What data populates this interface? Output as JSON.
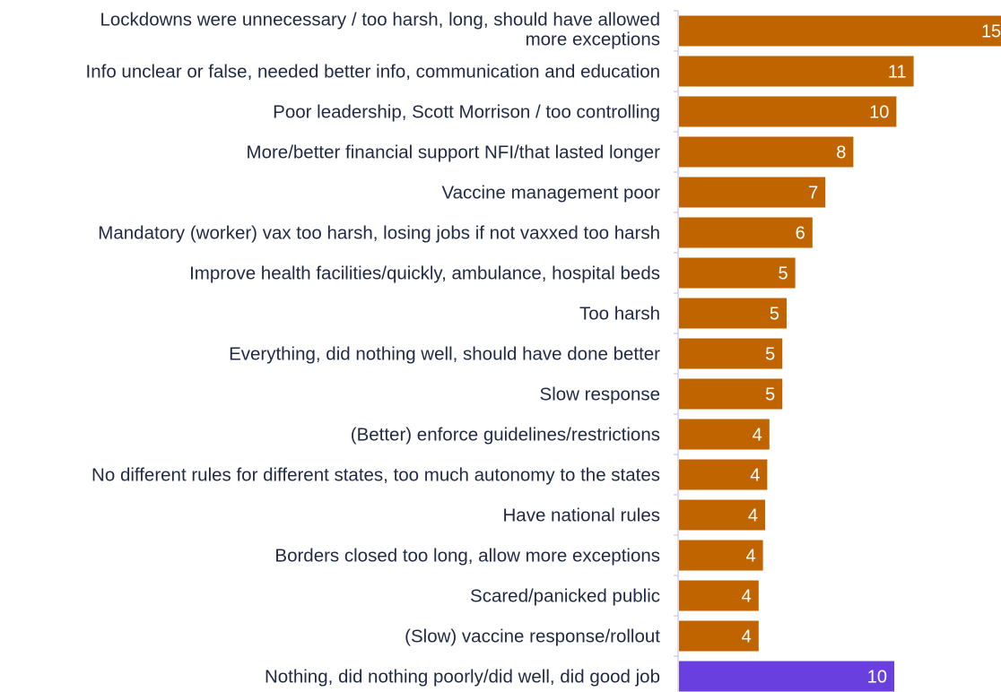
{
  "chart_data": {
    "type": "bar",
    "orientation": "horizontal",
    "categories": [
      [
        "Lockdowns were unnecessary / too harsh, long, should have allowed",
        "more exceptions"
      ],
      [
        "Info unclear or false, needed better info, communication and education"
      ],
      [
        "Poor leadership, Scott Morrison / too controlling"
      ],
      [
        "More/better financial support NFI/that lasted longer"
      ],
      [
        "Vaccine management poor"
      ],
      [
        "Mandatory (worker) vax too harsh, losing jobs if not vaxxed too harsh"
      ],
      [
        "Improve health facilities/quickly, ambulance, hospital beds"
      ],
      [
        "Too harsh"
      ],
      [
        "Everything, did nothing well, should have done better"
      ],
      [
        "Slow response"
      ],
      [
        "(Better) enforce guidelines/restrictions"
      ],
      [
        "No different rules for different states, too much autonomy to the states"
      ],
      [
        "Have national rules"
      ],
      [
        "Borders closed too long, allow more exceptions"
      ],
      [
        "Scared/panicked  public"
      ],
      [
        "(Slow) vaccine response/rollout"
      ],
      [
        "Nothing, did nothing poorly/did well, did good job"
      ]
    ],
    "values": [
      15.3,
      10.9,
      10.1,
      8.1,
      6.8,
      6.2,
      5.4,
      5.0,
      4.8,
      4.8,
      4.2,
      4.1,
      4.0,
      3.9,
      3.7,
      3.7,
      10.0
    ],
    "value_labels": [
      "15",
      "11",
      "10",
      "8",
      "7",
      "6",
      "5",
      "5",
      "5",
      "5",
      "4",
      "4",
      "4",
      "4",
      "4",
      "4",
      "10"
    ],
    "colors": [
      "#c06400",
      "#c06400",
      "#c06400",
      "#c06400",
      "#c06400",
      "#c06400",
      "#c06400",
      "#c06400",
      "#c06400",
      "#c06400",
      "#c06400",
      "#c06400",
      "#c06400",
      "#c06400",
      "#c06400",
      "#c06400",
      "#6a3fe0"
    ],
    "axis_color": "#c9c2ee",
    "label_color": "#1f2a44",
    "value_label_color": "#ffffff",
    "title": "",
    "xlabel": "",
    "ylabel": "",
    "grid": false,
    "legend": "none"
  }
}
